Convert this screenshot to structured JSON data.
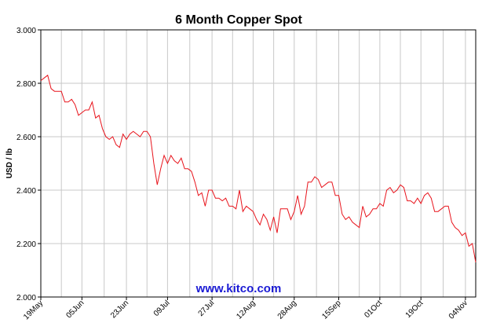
{
  "chart_data": {
    "type": "line",
    "title": "6 Month Copper Spot",
    "y_label": "USD / lb",
    "watermark": "www.kitco.com",
    "categories": [
      "19May",
      null,
      null,
      null,
      null,
      null,
      null,
      null,
      null,
      null,
      null,
      null,
      "05Jun",
      null,
      null,
      null,
      null,
      null,
      null,
      null,
      null,
      null,
      null,
      null,
      null,
      "23Jun",
      null,
      null,
      null,
      null,
      null,
      null,
      null,
      null,
      null,
      null,
      null,
      "09Jul",
      null,
      null,
      null,
      null,
      null,
      null,
      null,
      null,
      null,
      null,
      null,
      null,
      "27Jul",
      null,
      null,
      null,
      null,
      null,
      null,
      null,
      null,
      null,
      null,
      null,
      "12Aug",
      null,
      null,
      null,
      null,
      null,
      null,
      null,
      null,
      null,
      null,
      null,
      "28Aug",
      null,
      null,
      null,
      null,
      null,
      null,
      null,
      null,
      null,
      null,
      null,
      null,
      "15Sep",
      null,
      null,
      null,
      null,
      null,
      null,
      null,
      null,
      null,
      null,
      null,
      "01Oct",
      null,
      null,
      null,
      null,
      null,
      null,
      null,
      null,
      null,
      null,
      null,
      "19Oct",
      null,
      null,
      null,
      null,
      null,
      null,
      null,
      null,
      null,
      null,
      null,
      null,
      "04Nov",
      null,
      null,
      null
    ],
    "series": [
      {
        "name": "Copper Spot",
        "color": "#e8141c",
        "values": [
          2.81,
          2.82,
          2.83,
          2.78,
          2.77,
          2.77,
          2.77,
          2.73,
          2.73,
          2.74,
          2.72,
          2.68,
          2.69,
          2.7,
          2.7,
          2.73,
          2.67,
          2.68,
          2.63,
          2.6,
          2.59,
          2.6,
          2.57,
          2.56,
          2.61,
          2.59,
          2.61,
          2.62,
          2.61,
          2.6,
          2.62,
          2.62,
          2.6,
          2.5,
          2.42,
          2.48,
          2.53,
          2.5,
          2.53,
          2.51,
          2.5,
          2.52,
          2.48,
          2.48,
          2.47,
          2.43,
          2.38,
          2.39,
          2.34,
          2.4,
          2.4,
          2.37,
          2.37,
          2.36,
          2.37,
          2.34,
          2.34,
          2.33,
          2.4,
          2.32,
          2.34,
          2.33,
          2.32,
          2.29,
          2.27,
          2.31,
          2.29,
          2.25,
          2.3,
          2.24,
          2.33,
          2.33,
          2.33,
          2.29,
          2.32,
          2.38,
          2.31,
          2.34,
          2.43,
          2.43,
          2.45,
          2.44,
          2.41,
          2.42,
          2.43,
          2.43,
          2.38,
          2.38,
          2.31,
          2.29,
          2.3,
          2.28,
          2.27,
          2.26,
          2.34,
          2.3,
          2.31,
          2.33,
          2.33,
          2.35,
          2.34,
          2.4,
          2.41,
          2.39,
          2.4,
          2.42,
          2.41,
          2.36,
          2.36,
          2.35,
          2.37,
          2.35,
          2.38,
          2.39,
          2.37,
          2.32,
          2.32,
          2.33,
          2.34,
          2.34,
          2.28,
          2.26,
          2.25,
          2.23,
          2.24,
          2.19,
          2.2,
          2.13
        ]
      }
    ],
    "ylim": [
      2,
      3
    ],
    "yticks": [
      {
        "value": 2,
        "label": "2.000"
      },
      {
        "value": 2.2,
        "label": "2.200"
      },
      {
        "value": 2.4,
        "label": "2.400"
      },
      {
        "value": 2.6,
        "label": "2.600"
      },
      {
        "value": 2.8,
        "label": "2.800"
      },
      {
        "value": 3,
        "label": "3.000"
      }
    ],
    "grid": true
  }
}
